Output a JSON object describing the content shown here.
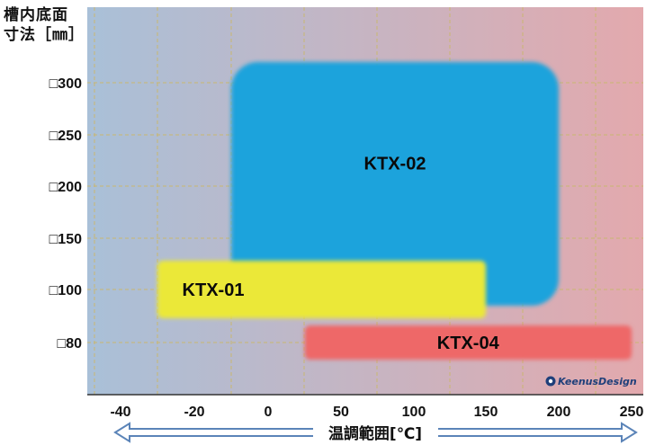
{
  "chart_data": {
    "type": "range",
    "ylabel_line1": "槽内底面",
    "ylabel_line2": "寸法［㎜］",
    "xlabel": "温調範囲[℃]",
    "xlim": [
      -50,
      250
    ],
    "x_ticks": [
      -40,
      -20,
      0,
      50,
      100,
      150,
      200,
      250
    ],
    "x_tick_labels": [
      "-40",
      "-20",
      "0",
      "50",
      "100",
      "150",
      "200",
      "250"
    ],
    "y_ticks": [
      "□300",
      "□250",
      "□200",
      "□150",
      "□100",
      "□80"
    ],
    "grid": true,
    "background_gradient": [
      "#a9c0d8",
      "#e3a9ad"
    ],
    "series": [
      {
        "name": "KTX-02",
        "x_range": [
          -10,
          200
        ],
        "y_range": [
          "□300",
          "□100"
        ],
        "color": "#1ea3dc"
      },
      {
        "name": "KTX-01",
        "x_range": [
          -30,
          150
        ],
        "y_range": [
          "□100",
          "□100"
        ],
        "color": "#ebe838"
      },
      {
        "name": "KTX-04",
        "x_range": [
          25,
          250
        ],
        "y_range": [
          "□80",
          "□80"
        ],
        "color": "#ee6868"
      }
    ],
    "watermark": "KeenusDesign"
  }
}
